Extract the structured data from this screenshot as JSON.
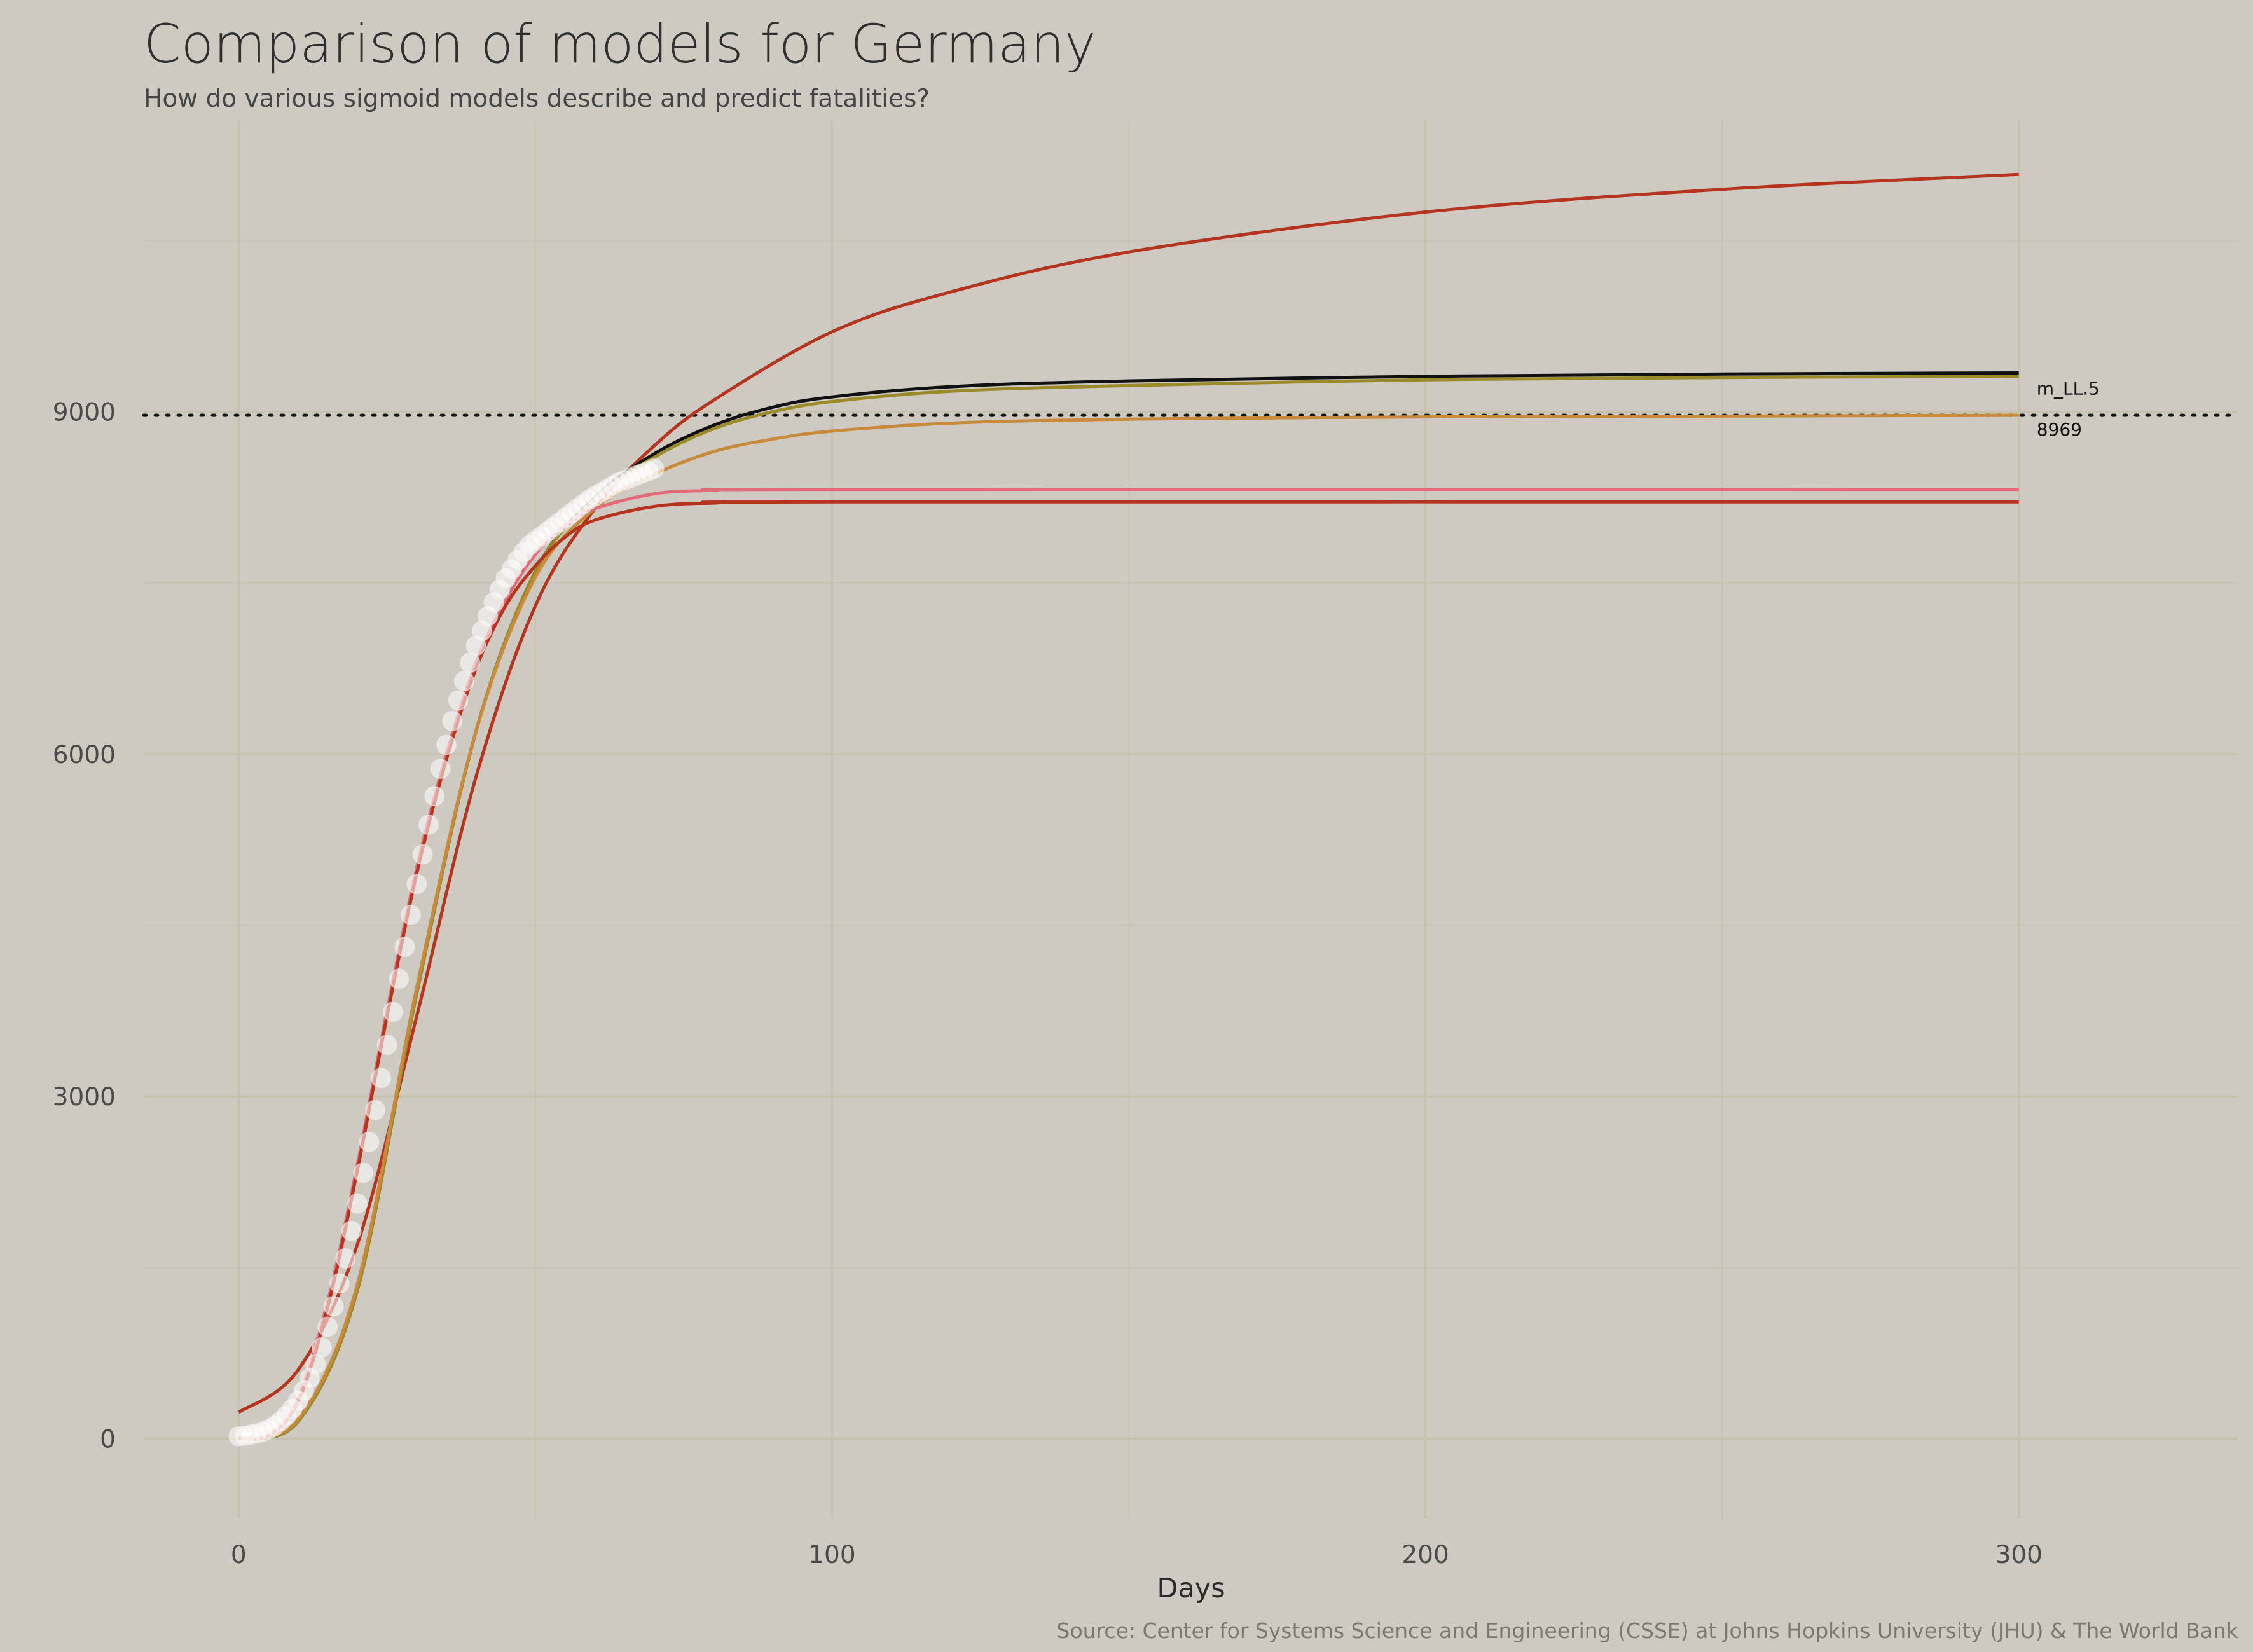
{
  "chart_data": {
    "type": "line",
    "title": "Comparison of models for Germany",
    "subtitle": "How do various sigmoid models describe and predict fatalities?",
    "xlabel": "Days",
    "ylabel": "",
    "caption": "Source: Center for Systems Science and Engineering (CSSE) at Johns Hopkins University (JHU) & The World Bank",
    "xlim": [
      -16,
      337
    ],
    "ylim": [
      -700,
      11550
    ],
    "x_ticks": [
      0,
      100,
      200,
      300
    ],
    "y_ticks": [
      0,
      3000,
      6000,
      9000
    ],
    "grid": true,
    "reference_line": {
      "y": 8969,
      "style": "dotted",
      "color": "#111111"
    },
    "annotations": [
      {
        "text": "m_LL.5",
        "x": 303,
        "y": 9150
      },
      {
        "text": "8969",
        "x": 303,
        "y": 8790
      }
    ],
    "series": [
      {
        "color": "#b5341d",
        "points": [
          [
            0,
            230
          ],
          [
            10,
            600
          ],
          [
            20,
            1700
          ],
          [
            30,
            3700
          ],
          [
            40,
            5800
          ],
          [
            50,
            7300
          ],
          [
            60,
            8150
          ],
          [
            70,
            8700
          ],
          [
            80,
            9100
          ],
          [
            100,
            9700
          ],
          [
            120,
            10050
          ],
          [
            150,
            10400
          ],
          [
            200,
            10750
          ],
          [
            250,
            10950
          ],
          [
            300,
            11080
          ]
        ]
      },
      {
        "color": "#111111",
        "points": [
          [
            0,
            5
          ],
          [
            10,
            150
          ],
          [
            20,
            1300
          ],
          [
            30,
            3900
          ],
          [
            40,
            6200
          ],
          [
            50,
            7600
          ],
          [
            60,
            8250
          ],
          [
            70,
            8630
          ],
          [
            80,
            8880
          ],
          [
            90,
            9040
          ],
          [
            100,
            9130
          ],
          [
            120,
            9220
          ],
          [
            150,
            9270
          ],
          [
            200,
            9310
          ],
          [
            250,
            9330
          ],
          [
            300,
            9340
          ]
        ]
      },
      {
        "color": "#9a8a2a",
        "points": [
          [
            0,
            5
          ],
          [
            10,
            150
          ],
          [
            20,
            1300
          ],
          [
            30,
            3900
          ],
          [
            40,
            6200
          ],
          [
            50,
            7600
          ],
          [
            60,
            8230
          ],
          [
            70,
            8600
          ],
          [
            80,
            8850
          ],
          [
            90,
            9000
          ],
          [
            100,
            9090
          ],
          [
            120,
            9180
          ],
          [
            150,
            9230
          ],
          [
            200,
            9280
          ],
          [
            250,
            9300
          ],
          [
            300,
            9310
          ]
        ]
      },
      {
        "color": "#c98a3b",
        "points": [
          [
            0,
            5
          ],
          [
            10,
            170
          ],
          [
            20,
            1350
          ],
          [
            30,
            3950
          ],
          [
            40,
            6200
          ],
          [
            50,
            7550
          ],
          [
            60,
            8150
          ],
          [
            70,
            8450
          ],
          [
            80,
            8650
          ],
          [
            90,
            8760
          ],
          [
            100,
            8830
          ],
          [
            120,
            8900
          ],
          [
            150,
            8935
          ],
          [
            200,
            8955
          ],
          [
            250,
            8962
          ],
          [
            300,
            8969
          ]
        ]
      },
      {
        "color": "#e36b78",
        "points": [
          [
            0,
            2
          ],
          [
            5,
            30
          ],
          [
            10,
            350
          ],
          [
            15,
            1200
          ],
          [
            20,
            2400
          ],
          [
            25,
            3750
          ],
          [
            30,
            5000
          ],
          [
            35,
            6000
          ],
          [
            40,
            6800
          ],
          [
            45,
            7350
          ],
          [
            50,
            7750
          ],
          [
            55,
            8000
          ],
          [
            60,
            8150
          ],
          [
            70,
            8280
          ],
          [
            80,
            8310
          ],
          [
            100,
            8320
          ],
          [
            300,
            8320
          ]
        ]
      },
      {
        "color": "#b5341d",
        "points": [
          [
            0,
            1
          ],
          [
            5,
            25
          ],
          [
            10,
            320
          ],
          [
            15,
            1150
          ],
          [
            20,
            2350
          ],
          [
            25,
            3700
          ],
          [
            30,
            4950
          ],
          [
            35,
            5950
          ],
          [
            40,
            6750
          ],
          [
            45,
            7300
          ],
          [
            50,
            7650
          ],
          [
            55,
            7900
          ],
          [
            60,
            8050
          ],
          [
            70,
            8170
          ],
          [
            80,
            8200
          ],
          [
            100,
            8210
          ],
          [
            300,
            8210
          ]
        ]
      }
    ],
    "observed": {
      "color": "#ffffff",
      "points": [
        [
          0,
          20
        ],
        [
          1,
          25
        ],
        [
          2,
          35
        ],
        [
          3,
          45
        ],
        [
          4,
          60
        ],
        [
          5,
          80
        ],
        [
          6,
          110
        ],
        [
          7,
          150
        ],
        [
          8,
          200
        ],
        [
          9,
          260
        ],
        [
          10,
          330
        ],
        [
          11,
          420
        ],
        [
          12,
          530
        ],
        [
          13,
          650
        ],
        [
          14,
          800
        ],
        [
          15,
          980
        ],
        [
          16,
          1160
        ],
        [
          17,
          1360
        ],
        [
          18,
          1580
        ],
        [
          19,
          1820
        ],
        [
          20,
          2060
        ],
        [
          21,
          2330
        ],
        [
          22,
          2600
        ],
        [
          23,
          2880
        ],
        [
          24,
          3160
        ],
        [
          25,
          3450
        ],
        [
          26,
          3740
        ],
        [
          27,
          4030
        ],
        [
          28,
          4310
        ],
        [
          29,
          4590
        ],
        [
          30,
          4860
        ],
        [
          31,
          5120
        ],
        [
          32,
          5380
        ],
        [
          33,
          5630
        ],
        [
          34,
          5870
        ],
        [
          35,
          6080
        ],
        [
          36,
          6290
        ],
        [
          37,
          6470
        ],
        [
          38,
          6640
        ],
        [
          39,
          6800
        ],
        [
          40,
          6950
        ],
        [
          41,
          7080
        ],
        [
          42,
          7210
        ],
        [
          43,
          7330
        ],
        [
          44,
          7440
        ],
        [
          45,
          7540
        ],
        [
          46,
          7620
        ],
        [
          47,
          7700
        ],
        [
          48,
          7770
        ],
        [
          49,
          7830
        ],
        [
          50,
          7870
        ],
        [
          51,
          7910
        ],
        [
          52,
          7950
        ],
        [
          53,
          7990
        ],
        [
          54,
          8030
        ],
        [
          55,
          8070
        ],
        [
          56,
          8110
        ],
        [
          57,
          8150
        ],
        [
          58,
          8190
        ],
        [
          59,
          8230
        ],
        [
          60,
          8260
        ],
        [
          61,
          8290
        ],
        [
          62,
          8320
        ],
        [
          63,
          8350
        ],
        [
          64,
          8380
        ],
        [
          65,
          8400
        ],
        [
          66,
          8420
        ],
        [
          67,
          8440
        ],
        [
          68,
          8460
        ],
        [
          69,
          8480
        ],
        [
          70,
          8500
        ]
      ]
    }
  }
}
